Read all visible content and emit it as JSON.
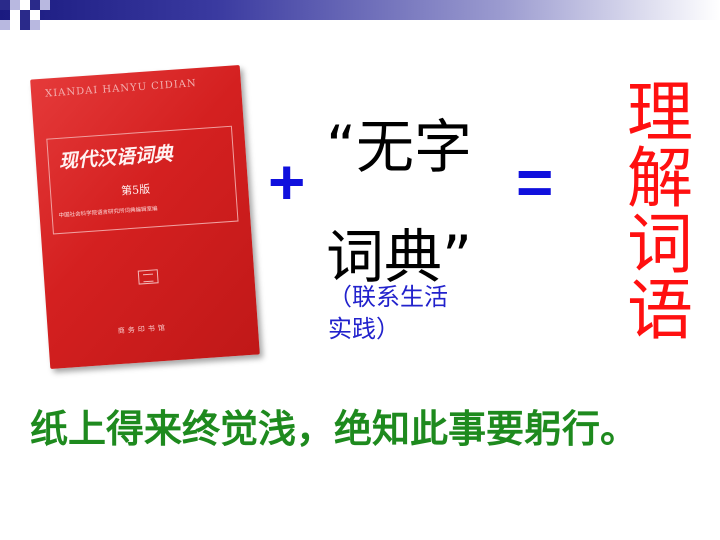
{
  "book": {
    "pinyin": "XIANDAI HANYU CIDIAN",
    "title": "现代汉语词典",
    "edition": "第5版",
    "authors": "中国社会科学院语言研究所词典编辑室编",
    "publisher": "商务印书馆"
  },
  "equation": {
    "plus": "+",
    "wuzi_line1": "“无字",
    "wuzi_line2": "词典”",
    "note_line1": "（联系生活",
    "note_line2": "实践）",
    "equals": "=",
    "result": "理解词语"
  },
  "footer": {
    "quote": "纸上得来终觉浅，绝知此事要躬行。"
  },
  "colors": {
    "operator": "#1010dd",
    "note": "#2222cc",
    "result": "#ff1010",
    "quote": "#1e8a1e",
    "book": "#d42020"
  }
}
